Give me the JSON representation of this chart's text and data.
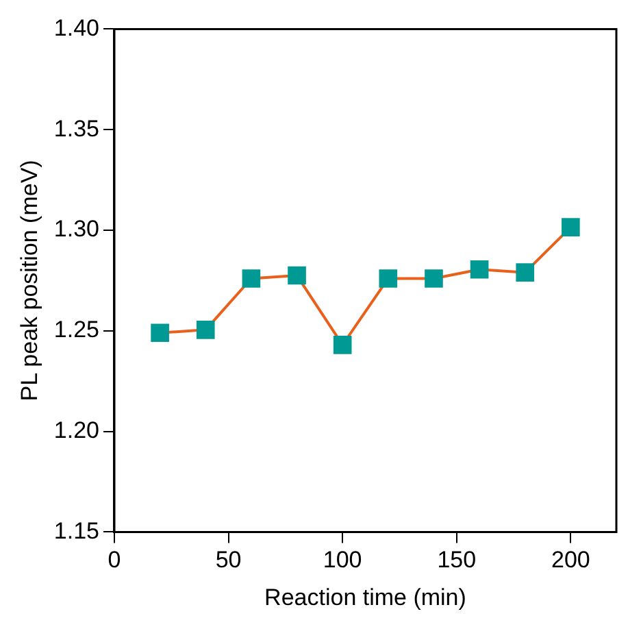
{
  "chart_data": {
    "type": "line",
    "xlabel": "Reaction time (min)",
    "ylabel": "PL peak position (meV)",
    "x": [
      20,
      40,
      60,
      80,
      100,
      120,
      140,
      160,
      180,
      200
    ],
    "series": [
      {
        "color": "#e8601c",
        "colors": [
          "#009994",
          "#009994",
          "#009994",
          "#009994",
          "#009994",
          "#009994",
          "#009994",
          "#009994",
          "#009994",
          "#009994"
        ],
        "values": [
          1.249,
          1.2505,
          1.276,
          1.2775,
          1.243,
          1.276,
          1.276,
          1.2805,
          1.279,
          1.3015
        ]
      }
    ],
    "xlim": [
      0,
      220
    ],
    "xticks": [
      0,
      50,
      100,
      150,
      200
    ],
    "ylim": [
      1.15,
      1.4
    ],
    "yticks": [
      1.15,
      {
        "value": 1.2,
        "label": "1.20"
      },
      1.25,
      {
        "value": 1.3,
        "label": "1.30"
      },
      1.35,
      {
        "value": 1.4,
        "label": "1.40"
      }
    ],
    "grid": false,
    "legend": false,
    "marker": "square",
    "line_style": "solid"
  }
}
